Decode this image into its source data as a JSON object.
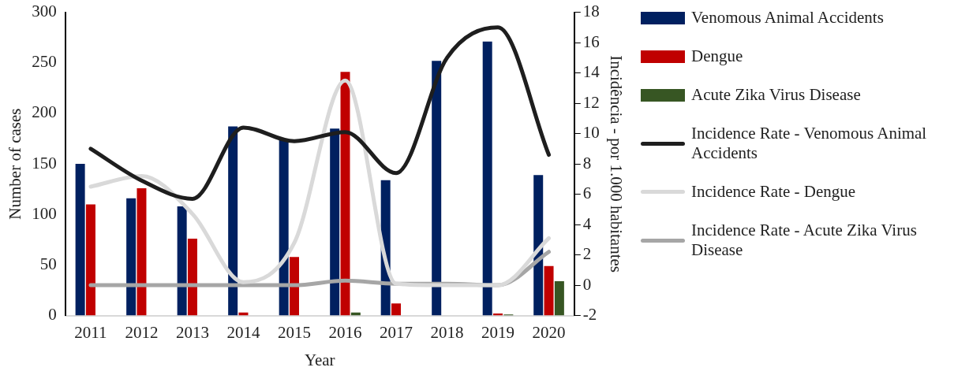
{
  "chart_data": {
    "type": "bar",
    "xlabel": "Year",
    "ylabel": "Number of cases",
    "y2label": "Incidência - por 1.000 habitantes",
    "categories": [
      "2011",
      "2012",
      "2013",
      "2014",
      "2015",
      "2016",
      "2017",
      "2018",
      "2019",
      "2020"
    ],
    "series": [
      {
        "name": "Venomous Animal Accidents",
        "color": "#002060",
        "values": [
          150,
          116,
          108,
          187,
          174,
          185,
          134,
          252,
          271,
          139
        ]
      },
      {
        "name": "Dengue",
        "color": "#c00000",
        "values": [
          110,
          126,
          76,
          3,
          58,
          241,
          12,
          0,
          2,
          49
        ]
      },
      {
        "name": "Acute Zika Virus Disease",
        "color": "#375623",
        "values": [
          0,
          0,
          0,
          0,
          0,
          3,
          0,
          0,
          1,
          34
        ]
      },
      {
        "name": "Incidence Rate - Venomous Animal Accidents",
        "type": "line",
        "axis": "y2",
        "color": "#1e1e1e",
        "values": [
          9.0,
          6.9,
          5.7,
          10.4,
          9.5,
          10.1,
          7.4,
          15.0,
          17.0,
          8.6
        ]
      },
      {
        "name": "Incidence Rate - Dengue",
        "type": "line",
        "axis": "y2",
        "color": "#d9d9d9",
        "values": [
          6.5,
          7.2,
          4.7,
          0.2,
          2.8,
          13.5,
          0.1,
          0,
          0,
          3.1
        ]
      },
      {
        "name": "Incidence Rate - Acute Zika Virus Disease",
        "type": "line",
        "axis": "y2",
        "color": "#a6a6a6",
        "values": [
          0,
          0,
          0,
          0,
          0,
          0.3,
          0.1,
          0.1,
          0,
          2.2
        ]
      }
    ],
    "ylim": [
      0,
      300
    ],
    "yticks": [
      0,
      50,
      100,
      150,
      200,
      250,
      300
    ],
    "y2lim": [
      -2,
      18
    ],
    "y2ticks": [
      -2,
      0,
      2,
      4,
      6,
      8,
      10,
      12,
      14,
      16,
      18
    ],
    "grid": false,
    "legend": "right",
    "marker": "none",
    "line_style": "solid"
  }
}
